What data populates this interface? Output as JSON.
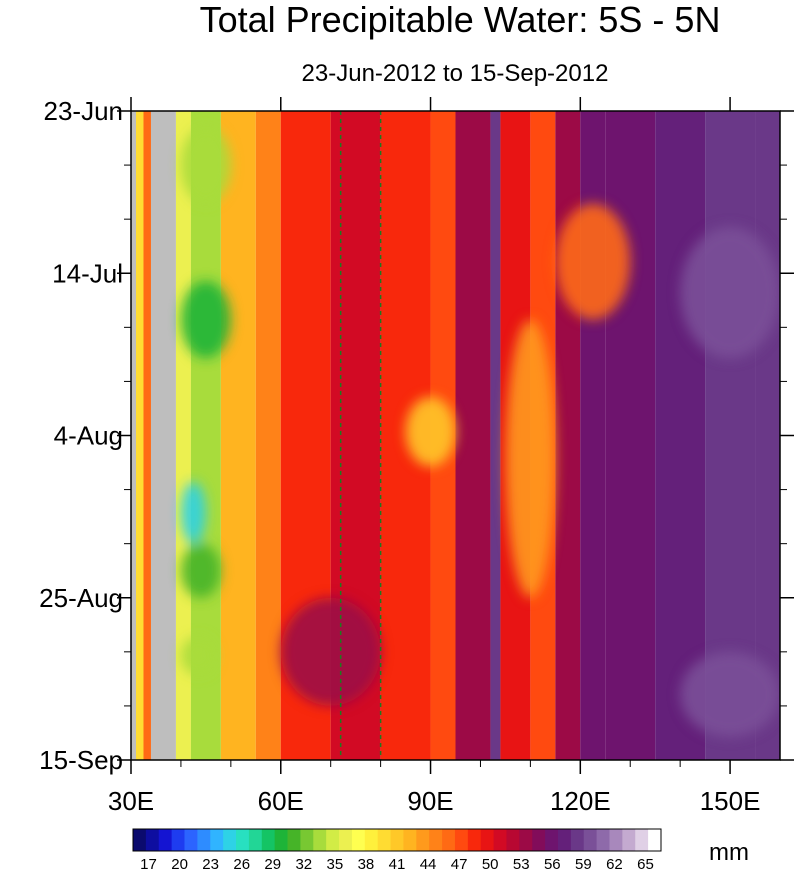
{
  "chart_data": {
    "type": "heatmap",
    "title": "Total Precipitable Water: 5S - 5N",
    "subtitle": "23-Jun-2012 to 15-Sep-2012",
    "x_axis": {
      "label": "",
      "range": [
        30,
        160
      ],
      "ticks": [
        {
          "value": 30,
          "label": "30E"
        },
        {
          "value": 60,
          "label": "60E"
        },
        {
          "value": 90,
          "label": "90E"
        },
        {
          "value": 120,
          "label": "120E"
        },
        {
          "value": 150,
          "label": "150E"
        }
      ]
    },
    "y_axis": {
      "label": "",
      "range": [
        "2012-06-23",
        "2012-09-15"
      ],
      "direction": "downward",
      "ticks": [
        {
          "value": "2012-06-23",
          "label": "23-Jun"
        },
        {
          "value": "2012-07-14",
          "label": "14-Jul"
        },
        {
          "value": "2012-08-04",
          "label": "4-Aug"
        },
        {
          "value": "2012-08-25",
          "label": "25-Aug"
        },
        {
          "value": "2012-09-15",
          "label": "15-Sep"
        }
      ]
    },
    "colorbar": {
      "unit": "mm",
      "labels": [
        "17",
        "20",
        "23",
        "26",
        "29",
        "32",
        "35",
        "38",
        "41",
        "44",
        "47",
        "50",
        "53",
        "56",
        "59",
        "62",
        "65"
      ],
      "colors": [
        "#0b0b6e",
        "#0e0ea0",
        "#1414d2",
        "#1e3cf0",
        "#2c64ff",
        "#2e8cff",
        "#30b4ff",
        "#2ed2e6",
        "#28e0c0",
        "#22d696",
        "#14c464",
        "#1eb438",
        "#46b428",
        "#78c832",
        "#a8dc3c",
        "#d2ec46",
        "#ecf050",
        "#ffff50",
        "#fff03c",
        "#ffdc32",
        "#ffc828",
        "#ffb420",
        "#ff9a1c",
        "#ff8218",
        "#ff6a14",
        "#ff4a10",
        "#f8280c",
        "#e81414",
        "#d20a24",
        "#b80832",
        "#9c0a46",
        "#820c5a",
        "#6e146e",
        "#64207a",
        "#6a3888",
        "#7a5098",
        "#8e6aaa",
        "#a888bc",
        "#c4aad0",
        "#e0d0e6",
        "#ffffff"
      ]
    },
    "missing_data_region": {
      "x_range": [
        34,
        39
      ],
      "color": "#bebebe"
    },
    "grid": false,
    "reference_lines": [
      {
        "value": 72,
        "style": "dashed",
        "color": "#1f7a1f"
      },
      {
        "value": 80,
        "style": "dashed",
        "color": "#1f7a1f"
      }
    ],
    "columns": [
      {
        "x": [
          30,
          31
        ],
        "value": 0,
        "missing": true
      },
      {
        "x": [
          31,
          32.5
        ],
        "value": 40
      },
      {
        "x": [
          32.5,
          34
        ],
        "value": 46
      },
      {
        "x": [
          34,
          39
        ],
        "value": 0,
        "missing": true
      },
      {
        "x": [
          39,
          42
        ],
        "value": 36
      },
      {
        "x": [
          42,
          48
        ],
        "value": 34
      },
      {
        "x": [
          48,
          55
        ],
        "value": 42
      },
      {
        "x": [
          55,
          60
        ],
        "value": 45
      },
      {
        "x": [
          60,
          70
        ],
        "value": 49
      },
      {
        "x": [
          70,
          80
        ],
        "value": 51
      },
      {
        "x": [
          80,
          90
        ],
        "value": 48
      },
      {
        "x": [
          90,
          95
        ],
        "value": 47
      },
      {
        "x": [
          95,
          102
        ],
        "value": 53
      },
      {
        "x": [
          102,
          104
        ],
        "value": 58
      },
      {
        "x": [
          104,
          110
        ],
        "value": 50
      },
      {
        "x": [
          110,
          115
        ],
        "value": 47
      },
      {
        "x": [
          115,
          120
        ],
        "value": 54
      },
      {
        "x": [
          120,
          125
        ],
        "value": 56
      },
      {
        "x": [
          125,
          135
        ],
        "value": 56
      },
      {
        "x": [
          135,
          145
        ],
        "value": 57
      },
      {
        "x": [
          145,
          155
        ],
        "value": 58
      },
      {
        "x": [
          155,
          160
        ],
        "value": 58
      }
    ],
    "features": [
      {
        "x": [
          40,
          50
        ],
        "t": [
          "2012-06-25",
          "2012-07-05"
        ],
        "value": 33
      },
      {
        "x": [
          40,
          50
        ],
        "t": [
          "2012-07-15",
          "2012-07-25"
        ],
        "value": 30
      },
      {
        "x": [
          40,
          45
        ],
        "t": [
          "2012-08-10",
          "2012-08-18"
        ],
        "value": 25
      },
      {
        "x": [
          40,
          48
        ],
        "t": [
          "2012-08-18",
          "2012-08-25"
        ],
        "value": 31
      },
      {
        "x": [
          40,
          47
        ],
        "t": [
          "2012-08-30",
          "2012-09-04"
        ],
        "value": 33
      },
      {
        "x": [
          85,
          95
        ],
        "t": [
          "2012-07-30",
          "2012-08-08"
        ],
        "value": 41
      },
      {
        "x": [
          105,
          115
        ],
        "t": [
          "2012-07-20",
          "2012-08-25"
        ],
        "value": 44
      },
      {
        "x": [
          115,
          130
        ],
        "t": [
          "2012-07-05",
          "2012-07-20"
        ],
        "value": 46
      },
      {
        "x": [
          140,
          160
        ],
        "t": [
          "2012-07-08",
          "2012-07-25"
        ],
        "value": 60
      },
      {
        "x": [
          140,
          160
        ],
        "t": [
          "2012-09-01",
          "2012-09-12"
        ],
        "value": 60
      },
      {
        "x": [
          60,
          80
        ],
        "t": [
          "2012-08-25",
          "2012-09-08"
        ],
        "value": 53
      }
    ]
  }
}
